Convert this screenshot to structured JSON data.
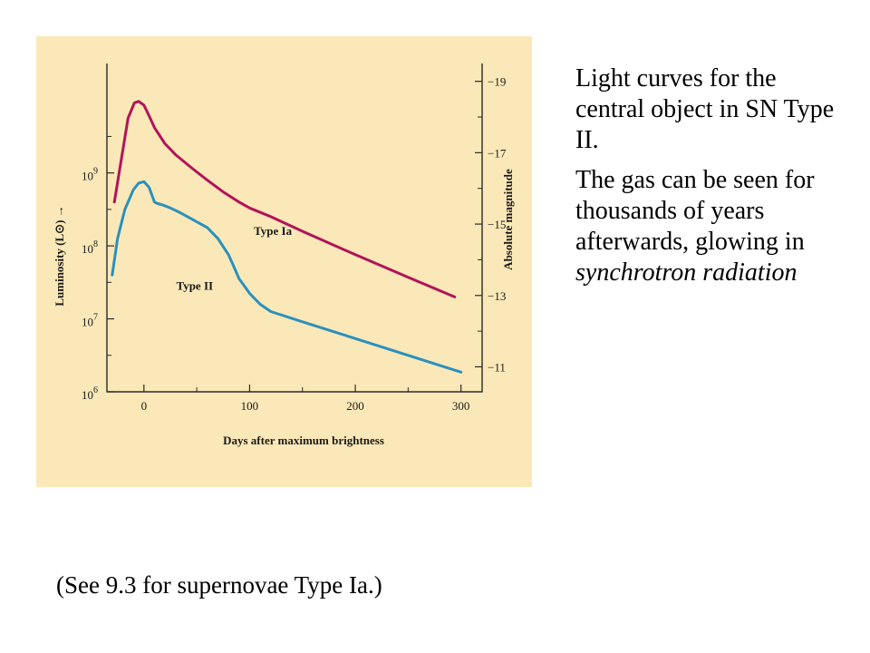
{
  "caption": {
    "paragraph1": "Light curves for the central object in SN Type II.",
    "paragraph2_text": "The gas can be seen for thousands of years afterwards, glowing in",
    "paragraph2_italic": "synchrotron radiation"
  },
  "footnote": "(See 9.3 for supernovae Type Ia.)",
  "chart_data": {
    "type": "line",
    "xlabel": "Days after maximum brightness",
    "ylabel": "Luminosity (L⊙) →",
    "y2label": "Absolute magnitude",
    "x_ticks": [
      "0",
      "100",
      "200",
      "300"
    ],
    "x_tick_values": [
      0,
      100,
      200,
      300
    ],
    "y_ticks": [
      {
        "value": 6,
        "label": "10",
        "exp": "6"
      },
      {
        "value": 7,
        "label": "10",
        "exp": "7"
      },
      {
        "value": 8,
        "label": "10",
        "exp": "8"
      },
      {
        "value": 9,
        "label": "10",
        "exp": "9"
      }
    ],
    "y2_ticks": [
      "−11",
      "−13",
      "−15",
      "−17",
      "−19"
    ],
    "y2_tick_values": [
      -11,
      -13,
      -15,
      -17,
      -19
    ],
    "xlim": [
      -35,
      320
    ],
    "ylim_log10": [
      6,
      10.5
    ],
    "y2lim": [
      -10.3,
      -19.5
    ],
    "colors": {
      "type_ia": "#b0145a",
      "type_ii": "#2a90be",
      "background": "#fbe8b8"
    },
    "series": [
      {
        "name": "Type Ia",
        "x": [
          -28,
          -15,
          -9,
          -5,
          0,
          5,
          10,
          20,
          30,
          45,
          60,
          75,
          90,
          100,
          120,
          150,
          200,
          250,
          294
        ],
        "log10_y": [
          8.6,
          9.75,
          9.96,
          9.98,
          9.93,
          9.78,
          9.62,
          9.4,
          9.25,
          9.07,
          8.9,
          8.74,
          8.6,
          8.52,
          8.4,
          8.2,
          7.88,
          7.57,
          7.3
        ]
      },
      {
        "name": "Type II",
        "x": [
          -30,
          -25,
          -18,
          -10,
          -5,
          0,
          5,
          8,
          10,
          13,
          18,
          25,
          35,
          50,
          60,
          70,
          80,
          85,
          90,
          100,
          110,
          120,
          150,
          200,
          250,
          300
        ],
        "log10_y": [
          7.6,
          8.1,
          8.5,
          8.77,
          8.86,
          8.88,
          8.8,
          8.68,
          8.6,
          8.58,
          8.56,
          8.52,
          8.45,
          8.33,
          8.25,
          8.1,
          7.88,
          7.72,
          7.55,
          7.35,
          7.2,
          7.1,
          6.96,
          6.73,
          6.5,
          6.27
        ]
      }
    ],
    "annotations": [
      {
        "text": "Type Ia",
        "series": "Type Ia"
      },
      {
        "text": "Type II",
        "series": "Type II"
      }
    ]
  }
}
